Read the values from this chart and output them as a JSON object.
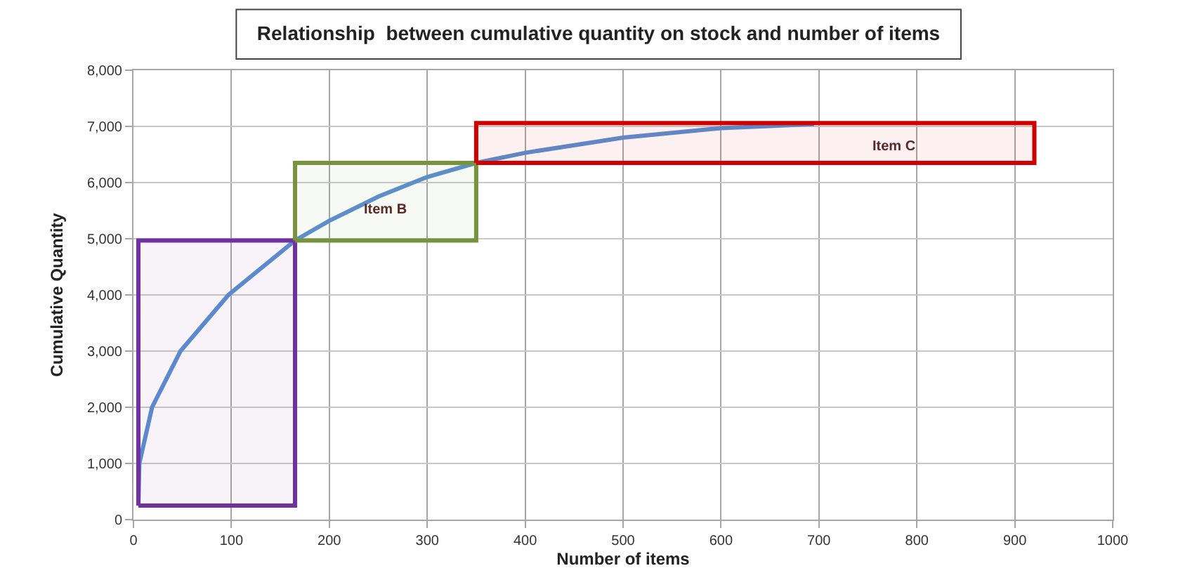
{
  "chart_data": {
    "type": "line",
    "title": "Relationship  between cumulative quantity on stock and number of items",
    "xlabel": "Number of items",
    "ylabel": "Cumulative Quantity",
    "series": [
      {
        "color": "#5b8fd0",
        "x": [
          5,
          6,
          19,
          48,
          97,
          165,
          200,
          250,
          300,
          350,
          400,
          500,
          600,
          695
        ],
        "values": [
          250,
          1000,
          2000,
          3000,
          4000,
          4970,
          5320,
          5750,
          6100,
          6350,
          6530,
          6800,
          6970,
          7040
        ]
      },
      {
        "color": "#7030a0",
        "x": [
          5,
          165
        ],
        "values": [
          null,
          null
        ],
        "lower": [
          250,
          250
        ],
        "upper": [
          4970,
          4970
        ]
      },
      {
        "color": "#77933c",
        "x": [
          165,
          350
        ],
        "values": [
          null,
          null
        ],
        "lower": [
          4970,
          4970
        ],
        "upper": [
          6350,
          6350
        ]
      },
      {
        "color": "#d00000",
        "x": [
          350,
          920
        ],
        "values": [
          null,
          null
        ],
        "lower": [
          6350,
          6350
        ],
        "upper": [
          7060,
          7060
        ]
      }
    ],
    "annotations": [
      "Item B",
      "Item C"
    ],
    "xlim": [
      0,
      1000
    ],
    "xticks": [
      0,
      100,
      200,
      300,
      400,
      500,
      600,
      700,
      800,
      900,
      1000
    ],
    "ylim": [
      0,
      8000
    ],
    "yticks": [
      {
        "value": 0,
        "label": "0"
      },
      {
        "value": 1000,
        "label": "1,000"
      },
      {
        "value": 2000,
        "label": "2,000"
      },
      {
        "value": 3000,
        "label": "3,000"
      },
      {
        "value": 4000,
        "label": "4,000"
      },
      {
        "value": 5000,
        "label": "5,000"
      },
      {
        "value": 6000,
        "label": "6,000"
      },
      {
        "value": 7000,
        "label": "7,000"
      },
      {
        "value": 8000,
        "label": "8,000"
      }
    ],
    "grid": true,
    "marker": "none",
    "line_style": "solid"
  }
}
